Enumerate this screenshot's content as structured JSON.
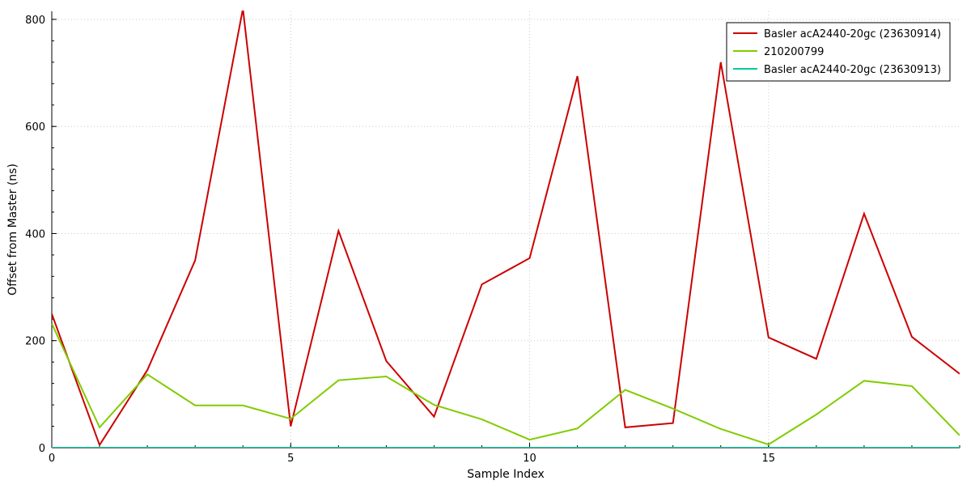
{
  "chart_data": {
    "type": "line",
    "xlabel": "Sample Index",
    "ylabel": "Offset from Master (ns)",
    "xlim": [
      0,
      19
    ],
    "ylim": [
      0,
      815
    ],
    "x_ticks": [
      0,
      5,
      10,
      15
    ],
    "y_ticks": [
      0,
      200,
      400,
      600,
      800
    ],
    "grid": true,
    "legend_position": "top-right",
    "x": [
      0,
      1,
      2,
      3,
      4,
      5,
      6,
      7,
      8,
      9,
      10,
      11,
      12,
      13,
      14,
      15,
      16,
      17,
      18,
      19
    ],
    "series": [
      {
        "name": "Basler acA2440-20gc (23630914)",
        "color": "#cc0000",
        "values": [
          250,
          5,
          145,
          350,
          820,
          40,
          405,
          162,
          58,
          305,
          354,
          694,
          38,
          46,
          720,
          206,
          166,
          437,
          207,
          138
        ]
      },
      {
        "name": "210200799",
        "color": "#80cc00",
        "values": [
          232,
          38,
          137,
          79,
          79,
          54,
          126,
          133,
          80,
          53,
          15,
          36,
          108,
          73,
          35,
          6,
          62,
          125,
          115,
          23
        ]
      },
      {
        "name": "Basler acA2440-20gc (23630913)",
        "color": "#00cc99",
        "values": [
          0,
          0,
          0,
          0,
          0,
          0,
          0,
          0,
          0,
          0,
          0,
          0,
          0,
          0,
          0,
          0,
          0,
          0,
          0,
          0
        ]
      }
    ]
  }
}
